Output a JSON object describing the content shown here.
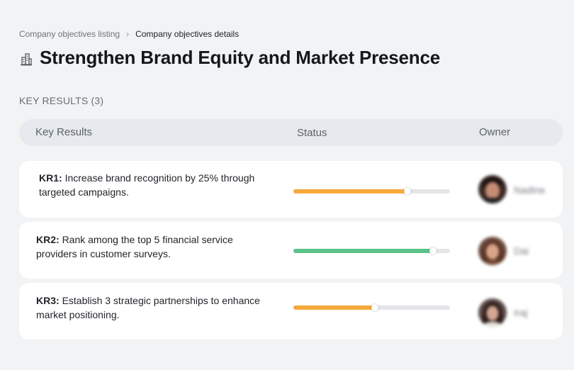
{
  "breadcrumb": {
    "parent": "Company objectives listing",
    "separator": "›",
    "current": "Company objectives details"
  },
  "page": {
    "icon": "buildings-icon",
    "title": "Strengthen Brand Equity and Market Presence"
  },
  "key_results_section": {
    "label": "KEY RESULTS (3)"
  },
  "table": {
    "headers": {
      "key_results": "Key Results",
      "status": "Status",
      "owner": "Owner"
    },
    "rows": [
      {
        "id": "KR1:",
        "text": "Increase brand recognition by 25% through targeted campaigns.",
        "progress": 0.73,
        "progress_color": "#f6a93b",
        "owner": "Nadine"
      },
      {
        "id": "KR2:",
        "text": "Rank among the top 5 financial service providers in customer surveys.",
        "progress": 0.89,
        "progress_color": "#5cc289",
        "owner": "Dai"
      },
      {
        "id": "KR3:",
        "text": "Establish 3 strategic partnerships to enhance market positioning.",
        "progress": 0.52,
        "progress_color": "#f6a93b",
        "owner": "Iraj"
      }
    ]
  },
  "colors": {
    "background": "#f2f3f5",
    "header_background": "#e6e9ee",
    "track": "#e4e5e8"
  }
}
